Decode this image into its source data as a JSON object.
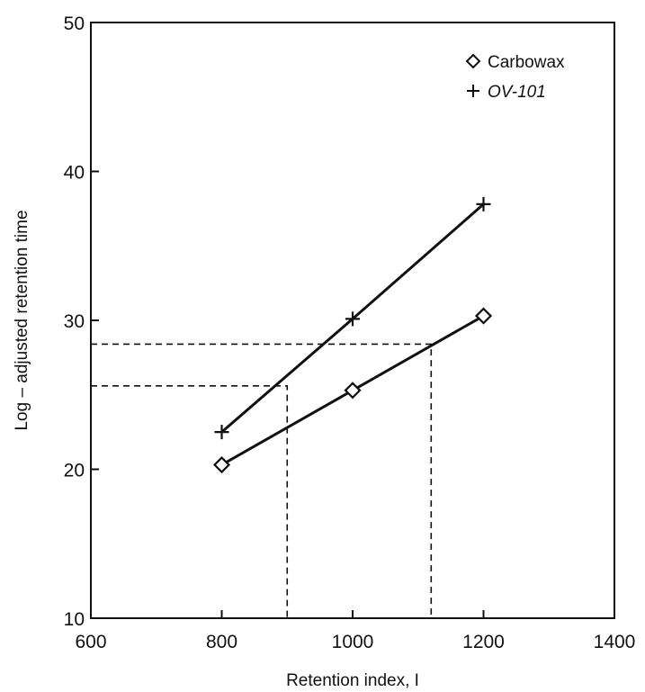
{
  "chart_data": {
    "type": "line",
    "title": "",
    "xlabel": "Retention index, I",
    "ylabel": "Log – adjusted retention time",
    "xlim": [
      600,
      1400
    ],
    "ylim": [
      10,
      50
    ],
    "xticks": [
      600,
      800,
      1000,
      1200,
      1400
    ],
    "yticks": [
      10,
      20,
      30,
      40,
      50
    ],
    "grid": false,
    "legend_position": "top-right",
    "series": [
      {
        "name": "Carbowax",
        "marker": "diamond",
        "x": [
          800,
          1000,
          1200
        ],
        "y": [
          20.3,
          25.3,
          30.3
        ]
      },
      {
        "name": "OV-101",
        "marker": "plus",
        "x": [
          800,
          1000,
          1200
        ],
        "y": [
          22.5,
          30.1,
          37.8
        ]
      }
    ],
    "reference_lines": [
      {
        "y": 25.6,
        "x": 900
      },
      {
        "y": 28.4,
        "x": 1120
      }
    ]
  }
}
